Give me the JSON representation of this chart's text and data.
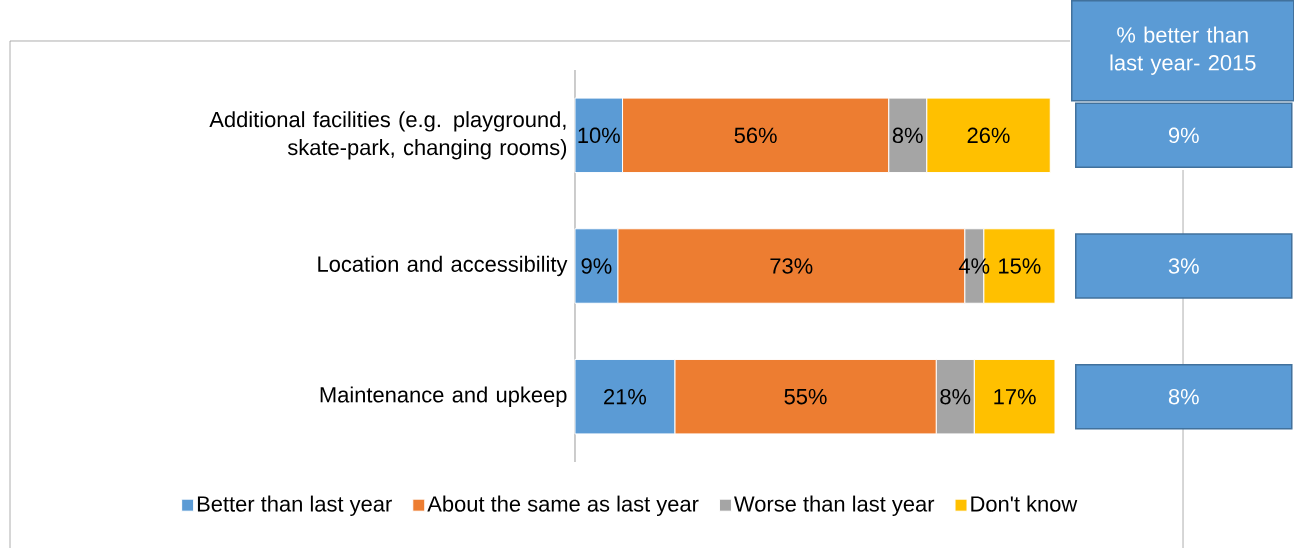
{
  "chart_data": {
    "type": "bar",
    "orientation": "horizontal",
    "stacked": true,
    "legend": "bottom",
    "categories": [
      "Additional facilities (e.g. playground, skate-park, changing rooms)",
      "Location and accessibility",
      "Maintenance and upkeep"
    ],
    "series": [
      {
        "name": "Better than last year",
        "color": "#5b9bd5",
        "values": [
          10,
          9,
          21
        ],
        "value_labels": [
          "10%",
          "9%",
          "21%"
        ]
      },
      {
        "name": "About the same as last year",
        "color": "#ed7d31",
        "values": [
          56,
          73,
          55
        ],
        "value_labels": [
          "56%",
          "73%",
          "55%"
        ]
      },
      {
        "name": "Worse than last year",
        "color": "#a5a5a5",
        "values": [
          8,
          4,
          8
        ],
        "value_labels": [
          "8%",
          "4%",
          "8%"
        ]
      },
      {
        "name": "Don't know",
        "color": "#ffc000",
        "values": [
          26,
          15,
          17
        ],
        "value_labels": [
          "26%",
          "15%",
          "17%"
        ]
      }
    ],
    "annotations": [
      "% better than last year- 2015",
      "9%",
      "3%",
      "8%"
    ]
  }
}
